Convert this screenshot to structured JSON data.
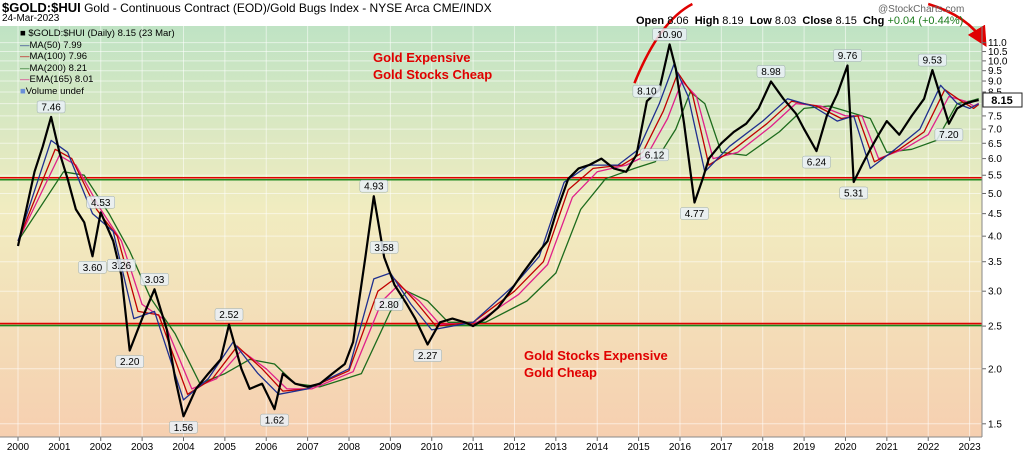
{
  "header": {
    "symbol": "$GOLD:$HUI",
    "title": "Gold - Continuous Contract (EOD)/Gold Bugs Index - NYSE Arca",
    "exchange": "CME/INDX",
    "date": "24-Mar-2023",
    "source": "@StockCharts.com",
    "quote": {
      "open_label": "Open",
      "open": "8.06",
      "high_label": "High",
      "high": "8.19",
      "low_label": "Low",
      "low": "8.03",
      "close_label": "Close",
      "close": "8.15",
      "chg_label": "Chg",
      "chg": "+0.04 (+0.44%)"
    }
  },
  "legend": {
    "main": "$GOLD:$HUI (Daily) 8.15 (23 Mar)",
    "items": [
      {
        "label": "MA(50) 7.99",
        "color": "#1f2f8f"
      },
      {
        "label": "MA(100) 7.96",
        "color": "#c00000"
      },
      {
        "label": "MA(200) 8.21",
        "color": "#1d6b1d"
      },
      {
        "label": "EMA(165) 8.01",
        "color": "#e0208a"
      },
      {
        "label": "Volume undef",
        "color": "#6a8fd8"
      }
    ]
  },
  "annotations": {
    "top": [
      "Gold Expensive",
      "Gold Stocks Cheap"
    ],
    "bottom": [
      "Gold Stocks Expensive",
      "Gold Cheap"
    ]
  },
  "colors": {
    "price": "#000000",
    "ma50": "#1f2f8f",
    "ma100": "#c00000",
    "ma200": "#1d6b1d",
    "ema165": "#e0208a",
    "upper_line": "#e00000",
    "lower_line": "#1d8a1d",
    "annotation": "#e00000"
  },
  "chart_data": {
    "type": "line",
    "y_scale": "log",
    "ylim": [
      1.4,
      12.0
    ],
    "xlim": [
      2000.0,
      2023.3
    ],
    "yticks": [
      1.5,
      2.0,
      2.5,
      3.0,
      3.5,
      4.0,
      4.5,
      5.0,
      5.5,
      6.0,
      6.5,
      7.0,
      7.5,
      8.0,
      8.5,
      9.0,
      9.5,
      10.0,
      10.5,
      11.0
    ],
    "xtick_labels": [
      "2000",
      "2001",
      "2002",
      "2003",
      "2004",
      "2005",
      "2006",
      "2007",
      "2008",
      "2009",
      "2010",
      "2011",
      "2012",
      "2013",
      "2014",
      "2015",
      "2016",
      "2017",
      "2018",
      "2019",
      "2020",
      "2021",
      "2022",
      "2023"
    ],
    "last_value_label": "8.15",
    "last_value": 8.15,
    "horizontal_lines": [
      {
        "y": 5.4,
        "color": "#e00000"
      },
      {
        "y": 5.4,
        "color": "#1d8a1d"
      },
      {
        "y": 2.52,
        "color": "#e00000"
      },
      {
        "y": 2.52,
        "color": "#1d8a1d"
      }
    ],
    "series": [
      {
        "key": "price",
        "x": [
          2000.0,
          2000.2,
          2000.4,
          2000.6,
          2000.8,
          2001.0,
          2001.2,
          2001.4,
          2001.6,
          2001.8,
          2002.0,
          2002.3,
          2002.5,
          2002.7,
          2003.0,
          2003.3,
          2003.6,
          2003.8,
          2004.0,
          2004.3,
          2004.6,
          2004.9,
          2005.1,
          2005.4,
          2005.6,
          2005.9,
          2006.2,
          2006.4,
          2006.7,
          2007.0,
          2007.3,
          2007.6,
          2007.9,
          2008.1,
          2008.4,
          2008.6,
          2008.85,
          2009.1,
          2009.4,
          2009.6,
          2009.9,
          2010.2,
          2010.5,
          2010.8,
          2011.0,
          2011.3,
          2011.6,
          2011.9,
          2012.2,
          2012.5,
          2012.8,
          2013.0,
          2013.3,
          2013.55,
          2013.8,
          2014.1,
          2014.4,
          2014.7,
          2014.95,
          2015.2,
          2015.5,
          2015.75,
          2015.9,
          2016.1,
          2016.35,
          2016.55,
          2016.7,
          2017.0,
          2017.3,
          2017.6,
          2017.9,
          2018.2,
          2018.5,
          2018.8,
          2019.0,
          2019.3,
          2019.55,
          2019.8,
          2020.05,
          2020.2,
          2020.4,
          2020.6,
          2020.8,
          2021.0,
          2021.3,
          2021.6,
          2021.9,
          2022.1,
          2022.3,
          2022.5,
          2022.7,
          2022.9,
          2023.1,
          2023.22
        ],
        "y": [
          3.8,
          4.6,
          5.6,
          6.4,
          7.46,
          6.2,
          5.4,
          4.6,
          4.3,
          3.6,
          4.53,
          3.9,
          3.26,
          2.2,
          2.6,
          3.03,
          2.45,
          1.9,
          1.56,
          1.8,
          1.95,
          2.1,
          2.52,
          2.0,
          1.8,
          1.85,
          1.62,
          1.95,
          1.85,
          1.82,
          1.85,
          1.95,
          2.05,
          2.3,
          3.6,
          4.93,
          3.58,
          3.1,
          2.8,
          2.6,
          2.27,
          2.55,
          2.6,
          2.55,
          2.5,
          2.6,
          2.75,
          3.0,
          3.3,
          3.6,
          3.9,
          4.5,
          5.4,
          5.7,
          5.8,
          6.0,
          5.7,
          5.6,
          6.12,
          8.1,
          8.6,
          10.9,
          9.6,
          7.2,
          4.77,
          5.4,
          6.0,
          6.5,
          6.9,
          7.2,
          7.8,
          8.98,
          8.2,
          7.6,
          7.0,
          6.24,
          7.5,
          8.4,
          9.76,
          5.31,
          5.8,
          6.3,
          6.8,
          7.3,
          6.8,
          7.5,
          8.2,
          9.53,
          8.3,
          7.2,
          7.8,
          8.0,
          8.1,
          8.15
        ]
      },
      {
        "key": "ma50",
        "x": [
          2000.0,
          2000.8,
          2001.2,
          2001.8,
          2002.3,
          2002.8,
          2003.3,
          2004.0,
          2004.6,
          2005.2,
          2005.8,
          2006.3,
          2007.0,
          2008.0,
          2008.6,
          2009.0,
          2009.5,
          2010.0,
          2011.0,
          2012.0,
          2012.6,
          2013.2,
          2013.8,
          2014.5,
          2015.0,
          2015.5,
          2015.85,
          2016.2,
          2016.6,
          2017.2,
          2018.0,
          2018.6,
          2019.2,
          2019.8,
          2020.2,
          2020.6,
          2021.2,
          2021.8,
          2022.3,
          2022.7,
          2023.0,
          2023.22
        ],
        "y": [
          3.9,
          6.6,
          6.2,
          4.5,
          4.1,
          2.6,
          2.7,
          1.7,
          1.9,
          2.3,
          1.95,
          1.75,
          1.8,
          2.0,
          3.2,
          3.3,
          2.8,
          2.45,
          2.55,
          3.1,
          3.6,
          5.3,
          5.8,
          5.8,
          6.3,
          8.0,
          9.8,
          8.3,
          5.6,
          6.4,
          7.3,
          8.2,
          7.9,
          7.3,
          7.5,
          5.7,
          6.3,
          7.0,
          8.8,
          8.0,
          7.8,
          7.99
        ]
      },
      {
        "key": "ma100",
        "x": [
          2000.0,
          2000.9,
          2001.3,
          2001.9,
          2002.4,
          2002.9,
          2003.4,
          2004.1,
          2004.7,
          2005.3,
          2005.9,
          2006.4,
          2007.0,
          2008.0,
          2008.7,
          2009.1,
          2009.6,
          2010.1,
          2011.0,
          2012.0,
          2012.7,
          2013.3,
          2013.9,
          2014.6,
          2015.1,
          2015.6,
          2015.95,
          2016.3,
          2016.7,
          2017.3,
          2018.1,
          2018.7,
          2019.3,
          2019.9,
          2020.3,
          2020.7,
          2021.3,
          2021.9,
          2022.4,
          2022.8,
          2023.1,
          2023.22
        ],
        "y": [
          3.9,
          6.3,
          6.0,
          4.6,
          4.0,
          2.7,
          2.65,
          1.75,
          1.9,
          2.25,
          2.0,
          1.78,
          1.8,
          1.98,
          3.0,
          3.2,
          2.85,
          2.5,
          2.55,
          3.0,
          3.5,
          5.1,
          5.7,
          5.8,
          6.2,
          7.7,
          9.4,
          8.4,
          5.8,
          6.3,
          7.2,
          8.1,
          7.9,
          7.4,
          7.5,
          5.9,
          6.3,
          6.9,
          8.6,
          8.1,
          7.8,
          7.96
        ]
      },
      {
        "key": "ema165",
        "x": [
          2000.0,
          2001.0,
          2001.4,
          2002.0,
          2002.5,
          2003.0,
          2003.5,
          2004.2,
          2004.8,
          2005.4,
          2006.0,
          2006.5,
          2007.1,
          2008.1,
          2008.8,
          2009.2,
          2009.7,
          2010.2,
          2011.1,
          2012.1,
          2012.8,
          2013.4,
          2014.0,
          2014.7,
          2015.2,
          2015.7,
          2016.05,
          2016.4,
          2016.8,
          2017.4,
          2018.2,
          2018.8,
          2019.4,
          2020.0,
          2020.4,
          2020.8,
          2021.4,
          2022.0,
          2022.5,
          2022.9,
          2023.1,
          2023.22
        ],
        "y": [
          3.9,
          6.1,
          5.8,
          4.6,
          3.9,
          2.8,
          2.6,
          1.8,
          1.9,
          2.2,
          2.0,
          1.8,
          1.8,
          1.97,
          2.85,
          3.1,
          2.85,
          2.52,
          2.55,
          2.95,
          3.45,
          4.9,
          5.6,
          5.8,
          6.1,
          7.4,
          9.0,
          8.3,
          6.0,
          6.2,
          7.1,
          8.0,
          7.9,
          7.5,
          7.5,
          6.0,
          6.3,
          6.8,
          8.3,
          8.1,
          7.9,
          8.01
        ]
      },
      {
        "key": "ma200",
        "x": [
          2000.0,
          2001.1,
          2001.6,
          2002.2,
          2002.7,
          2003.2,
          2003.8,
          2004.4,
          2005.0,
          2005.6,
          2006.2,
          2006.7,
          2007.3,
          2008.3,
          2009.0,
          2009.4,
          2009.9,
          2010.4,
          2011.3,
          2012.3,
          2013.0,
          2013.6,
          2014.2,
          2014.9,
          2015.4,
          2015.9,
          2016.25,
          2016.6,
          2017.0,
          2017.6,
          2018.4,
          2019.0,
          2019.6,
          2020.2,
          2020.6,
          2021.0,
          2021.6,
          2022.2,
          2022.7,
          2023.0,
          2023.22
        ],
        "y": [
          3.9,
          5.6,
          5.5,
          4.5,
          3.7,
          2.9,
          2.4,
          1.85,
          1.95,
          2.1,
          2.05,
          1.85,
          1.82,
          1.95,
          2.7,
          3.0,
          2.85,
          2.55,
          2.55,
          2.85,
          3.3,
          4.6,
          5.4,
          5.7,
          5.9,
          7.0,
          8.5,
          8.0,
          6.2,
          6.1,
          6.9,
          7.8,
          7.9,
          7.6,
          7.4,
          6.2,
          6.3,
          6.6,
          8.0,
          8.1,
          8.21
        ]
      }
    ],
    "point_labels": [
      {
        "x": 2000.8,
        "y": 7.46,
        "text": "7.46",
        "pos": "above"
      },
      {
        "x": 2001.8,
        "y": 3.6,
        "text": "3.60",
        "pos": "below"
      },
      {
        "x": 2002.0,
        "y": 4.53,
        "text": "4.53",
        "pos": "above"
      },
      {
        "x": 2002.5,
        "y": 3.26,
        "text": "3.26",
        "pos": "above"
      },
      {
        "x": 2002.7,
        "y": 2.2,
        "text": "2.20",
        "pos": "below"
      },
      {
        "x": 2003.3,
        "y": 3.03,
        "text": "3.03",
        "pos": "above"
      },
      {
        "x": 2004.0,
        "y": 1.56,
        "text": "1.56",
        "pos": "below"
      },
      {
        "x": 2005.1,
        "y": 2.52,
        "text": "2.52",
        "pos": "above"
      },
      {
        "x": 2006.2,
        "y": 1.62,
        "text": "1.62",
        "pos": "below"
      },
      {
        "x": 2008.6,
        "y": 4.93,
        "text": "4.93",
        "pos": "above"
      },
      {
        "x": 2008.85,
        "y": 3.58,
        "text": "3.58",
        "pos": "above"
      },
      {
        "x": 2009.4,
        "y": 2.8,
        "text": "2.80",
        "pos": "left"
      },
      {
        "x": 2009.9,
        "y": 2.27,
        "text": "2.27",
        "pos": "below"
      },
      {
        "x": 2014.95,
        "y": 6.12,
        "text": "6.12",
        "pos": "right"
      },
      {
        "x": 2015.2,
        "y": 8.1,
        "text": "8.10",
        "pos": "above"
      },
      {
        "x": 2015.75,
        "y": 10.9,
        "text": "10.90",
        "pos": "above"
      },
      {
        "x": 2016.35,
        "y": 4.77,
        "text": "4.77",
        "pos": "below"
      },
      {
        "x": 2018.2,
        "y": 8.98,
        "text": "8.98",
        "pos": "above"
      },
      {
        "x": 2019.3,
        "y": 6.24,
        "text": "6.24",
        "pos": "below"
      },
      {
        "x": 2020.05,
        "y": 9.76,
        "text": "9.76",
        "pos": "above"
      },
      {
        "x": 2020.2,
        "y": 5.31,
        "text": "5.31",
        "pos": "below"
      },
      {
        "x": 2022.1,
        "y": 9.53,
        "text": "9.53",
        "pos": "above"
      },
      {
        "x": 2022.5,
        "y": 7.2,
        "text": "7.20",
        "pos": "below"
      }
    ],
    "arrows": [
      {
        "color": "#e00000",
        "kind": "arc-up",
        "x": [
          2014.9,
          2016.3
        ],
        "y": [
          8.9,
          12.0
        ]
      },
      {
        "color": "#e00000",
        "kind": "arrow-down",
        "x": [
          2022.0,
          2023.35
        ],
        "y": [
          12.0,
          11.0
        ]
      }
    ]
  }
}
